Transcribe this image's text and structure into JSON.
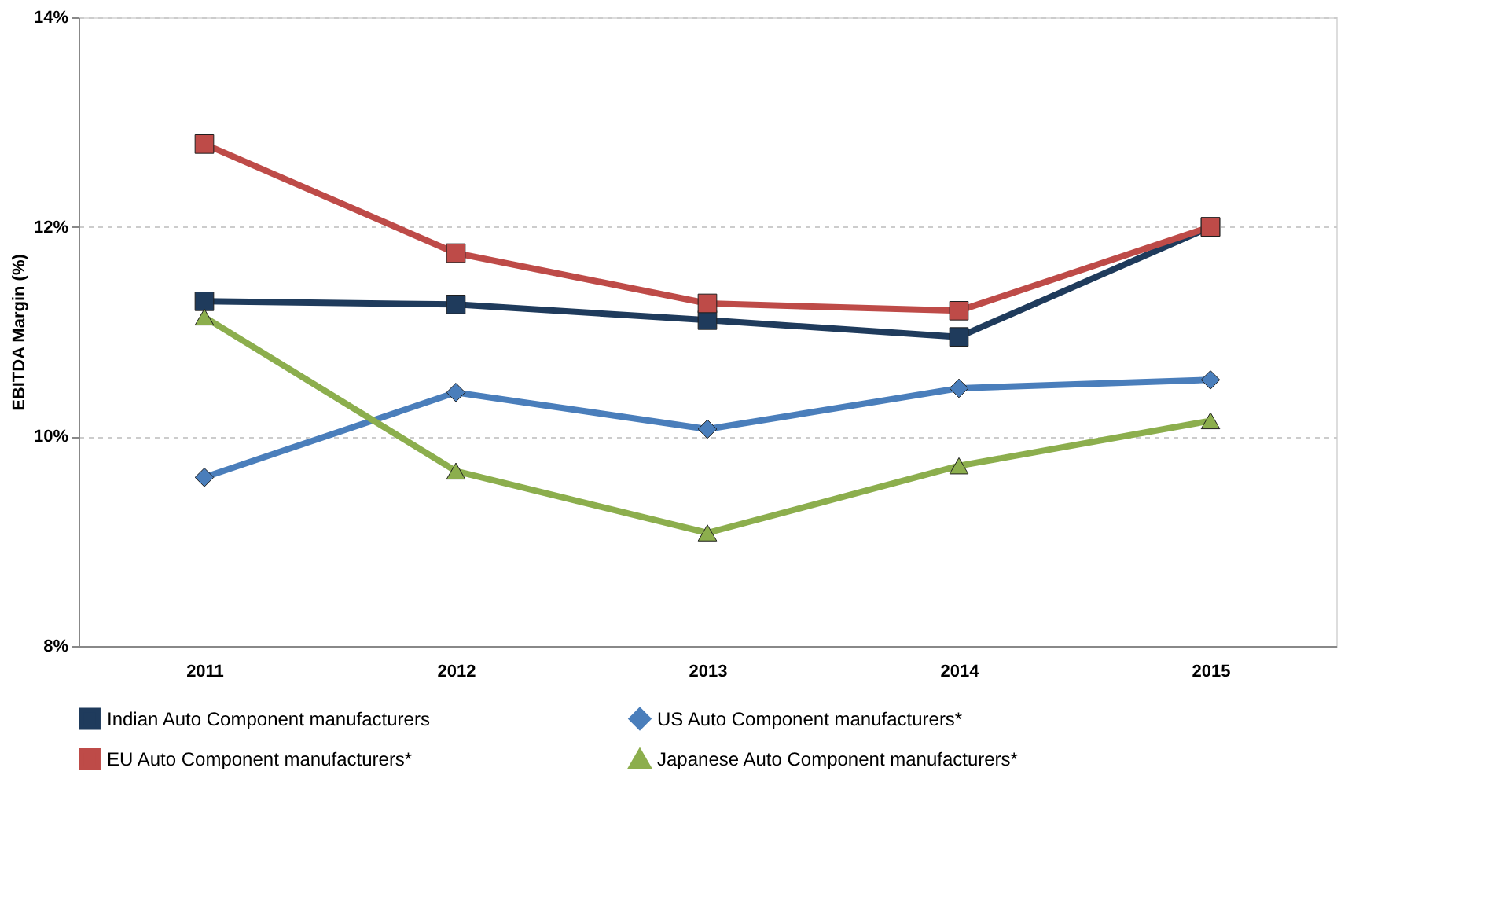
{
  "chart_data": {
    "type": "line",
    "ylabel": "EBITDA Margin (%)",
    "categories": [
      "2011",
      "2012",
      "2013",
      "2014",
      "2015"
    ],
    "ylim": [
      8,
      14
    ],
    "yticks": [
      {
        "value": 8,
        "label": "8%"
      },
      {
        "value": 10,
        "label": "10%"
      },
      {
        "value": 12,
        "label": "12%"
      },
      {
        "value": 14,
        "label": "14%"
      }
    ],
    "grid": "y",
    "legend": "bottom",
    "line_style": "solid",
    "series": [
      {
        "name": "Indian Auto Component manufacturers",
        "color": "#1f3b5c",
        "marker": "square",
        "values": [
          11.29,
          11.26,
          11.11,
          10.95,
          12.0
        ]
      },
      {
        "name": "US Auto Component manufacturers*",
        "color": "#4a7ebb",
        "marker": "diamond",
        "values": [
          9.61,
          10.42,
          10.07,
          10.46,
          10.54
        ]
      },
      {
        "name": "EU Auto Component manufacturers*",
        "color": "#be4b48",
        "marker": "square",
        "values": [
          12.79,
          11.75,
          11.27,
          11.2,
          12.0
        ]
      },
      {
        "name": "Japanese Auto Component manufacturers*",
        "color": "#8cae4d",
        "marker": "triangle",
        "values": [
          11.14,
          9.67,
          9.08,
          9.72,
          10.15
        ]
      }
    ]
  }
}
